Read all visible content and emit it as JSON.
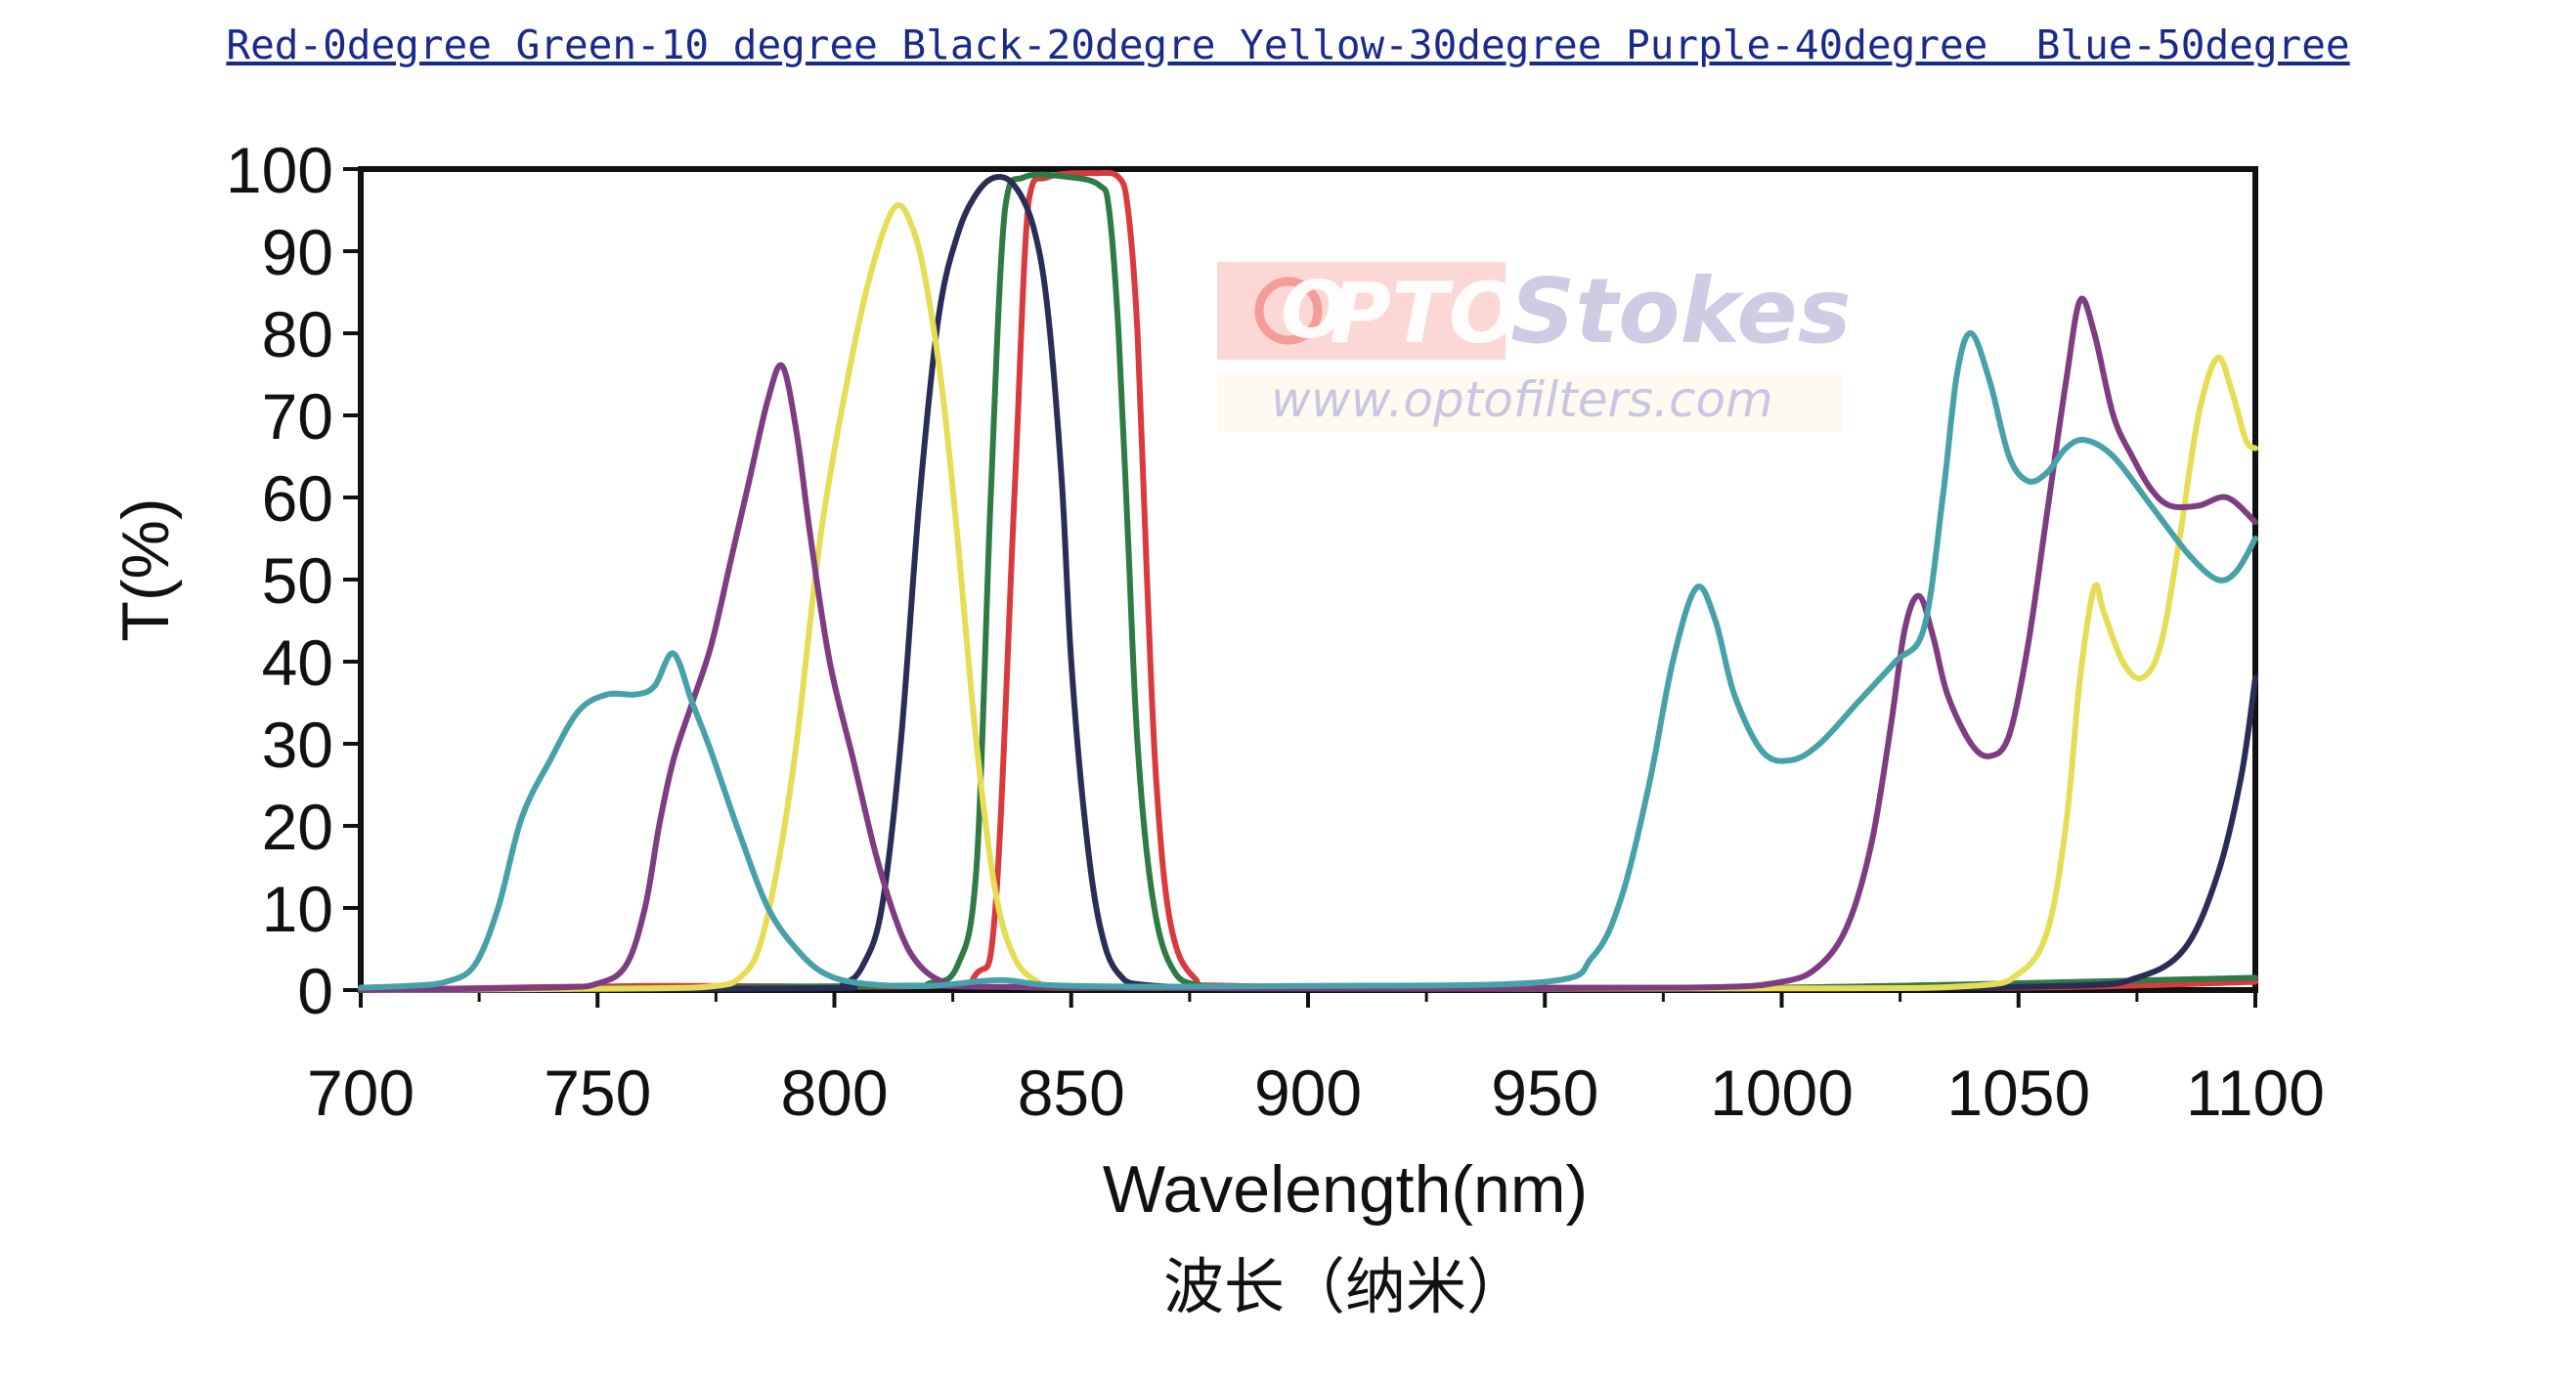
{
  "header": {
    "legend_caption": "Red-0degree Green-10 degree Black-20degre Yellow-30degree Purple-40degree  Blue-50degree"
  },
  "watermark": {
    "logo_o": "O",
    "logo_pto": "PTO",
    "logo_stokes": "Stokes",
    "url": "www.optofilters.com"
  },
  "colors": {
    "red": "#d93a3e",
    "green": "#2f7a45",
    "black": "#2a2d55",
    "yellow": "#e6dd55",
    "purple": "#7e3c82",
    "blue": "#47a1a8",
    "watermark_red": "#f6a3a0",
    "watermark_lilac": "#c6c4e0"
  },
  "chart_data": {
    "type": "line",
    "title": "",
    "xlabel": "Wavelength(nm)",
    "xlabel_secondary": "波长（纳米）",
    "ylabel": "T(%)",
    "xlim": [
      700,
      1100
    ],
    "ylim": [
      0,
      100
    ],
    "xticks": [
      700,
      750,
      800,
      850,
      900,
      950,
      1000,
      1050,
      1100
    ],
    "yticks": [
      0,
      10,
      20,
      30,
      40,
      50,
      60,
      70,
      80,
      90,
      100
    ],
    "grid": false,
    "legend": "none",
    "series": [
      {
        "color_key": "red",
        "points": [
          [
            700,
            0
          ],
          [
            760,
            0.5
          ],
          [
            820,
            0.5
          ],
          [
            830,
            2
          ],
          [
            834,
            10
          ],
          [
            838,
            60
          ],
          [
            841,
            96
          ],
          [
            845,
            99
          ],
          [
            855,
            99.5
          ],
          [
            860,
            99
          ],
          [
            862,
            95
          ],
          [
            864,
            80
          ],
          [
            866,
            50
          ],
          [
            868,
            25
          ],
          [
            871,
            8
          ],
          [
            876,
            1.5
          ],
          [
            885,
            0.5
          ],
          [
            950,
            0.3
          ],
          [
            1050,
            0.3
          ],
          [
            1100,
            1
          ]
        ]
      },
      {
        "color_key": "green",
        "points": [
          [
            700,
            0
          ],
          [
            810,
            0.5
          ],
          [
            820,
            0.8
          ],
          [
            826,
            3
          ],
          [
            830,
            15
          ],
          [
            833,
            60
          ],
          [
            836,
            95
          ],
          [
            840,
            99
          ],
          [
            850,
            99
          ],
          [
            856,
            98
          ],
          [
            858,
            95
          ],
          [
            860,
            80
          ],
          [
            862,
            55
          ],
          [
            864,
            30
          ],
          [
            867,
            12
          ],
          [
            871,
            3
          ],
          [
            878,
            0.5
          ],
          [
            900,
            0.3
          ],
          [
            1000,
            0.3
          ],
          [
            1100,
            1.5
          ]
        ]
      },
      {
        "color_key": "black",
        "points": [
          [
            700,
            0
          ],
          [
            795,
            0.2
          ],
          [
            802,
            0.8
          ],
          [
            806,
            3
          ],
          [
            810,
            10
          ],
          [
            814,
            30
          ],
          [
            818,
            60
          ],
          [
            822,
            82
          ],
          [
            826,
            92
          ],
          [
            830,
            97
          ],
          [
            834,
            99
          ],
          [
            838,
            98
          ],
          [
            842,
            93
          ],
          [
            845,
            83
          ],
          [
            848,
            62
          ],
          [
            850,
            40
          ],
          [
            853,
            20
          ],
          [
            856,
            8
          ],
          [
            860,
            2
          ],
          [
            868,
            0.5
          ],
          [
            900,
            0.2
          ],
          [
            1000,
            0.2
          ],
          [
            1060,
            0.5
          ],
          [
            1075,
            1.5
          ],
          [
            1085,
            5
          ],
          [
            1092,
            14
          ],
          [
            1097,
            26
          ],
          [
            1100,
            38
          ]
        ]
      },
      {
        "color_key": "yellow",
        "points": [
          [
            700,
            0
          ],
          [
            760,
            0.2
          ],
          [
            775,
            0.5
          ],
          [
            780,
            1.5
          ],
          [
            784,
            5
          ],
          [
            788,
            15
          ],
          [
            792,
            30
          ],
          [
            797,
            55
          ],
          [
            803,
            75
          ],
          [
            808,
            88
          ],
          [
            813,
            95.5
          ],
          [
            817,
            92
          ],
          [
            820,
            84
          ],
          [
            823,
            72
          ],
          [
            826,
            55
          ],
          [
            830,
            30
          ],
          [
            834,
            12
          ],
          [
            838,
            4
          ],
          [
            843,
            1
          ],
          [
            850,
            0.3
          ],
          [
            1000,
            0.2
          ],
          [
            1040,
            0.5
          ],
          [
            1050,
            2
          ],
          [
            1056,
            7
          ],
          [
            1060,
            20
          ],
          [
            1063,
            38
          ],
          [
            1066,
            49
          ],
          [
            1068,
            46
          ],
          [
            1072,
            40
          ],
          [
            1076,
            38
          ],
          [
            1080,
            42
          ],
          [
            1084,
            55
          ],
          [
            1088,
            70
          ],
          [
            1092,
            77
          ],
          [
            1095,
            73
          ],
          [
            1098,
            67
          ],
          [
            1100,
            66
          ]
        ]
      },
      {
        "color_key": "purple",
        "points": [
          [
            700,
            0
          ],
          [
            740,
            0.3
          ],
          [
            750,
            0.8
          ],
          [
            756,
            3
          ],
          [
            760,
            10
          ],
          [
            763,
            20
          ],
          [
            766,
            28
          ],
          [
            770,
            35
          ],
          [
            774,
            42
          ],
          [
            778,
            52
          ],
          [
            782,
            62
          ],
          [
            786,
            72
          ],
          [
            789,
            76
          ],
          [
            792,
            68
          ],
          [
            795,
            55
          ],
          [
            799,
            40
          ],
          [
            804,
            28
          ],
          [
            809,
            16
          ],
          [
            814,
            7
          ],
          [
            818,
            3
          ],
          [
            823,
            1
          ],
          [
            830,
            0.4
          ],
          [
            900,
            0.2
          ],
          [
            980,
            0.3
          ],
          [
            1000,
            1
          ],
          [
            1008,
            3
          ],
          [
            1014,
            8
          ],
          [
            1019,
            18
          ],
          [
            1023,
            32
          ],
          [
            1026,
            44
          ],
          [
            1029,
            48
          ],
          [
            1032,
            43
          ],
          [
            1035,
            36
          ],
          [
            1040,
            30
          ],
          [
            1044,
            28.5
          ],
          [
            1048,
            31
          ],
          [
            1052,
            42
          ],
          [
            1056,
            58
          ],
          [
            1060,
            74
          ],
          [
            1063,
            84
          ],
          [
            1066,
            80
          ],
          [
            1070,
            70
          ],
          [
            1074,
            65
          ],
          [
            1078,
            61
          ],
          [
            1082,
            59
          ],
          [
            1088,
            59
          ],
          [
            1094,
            60
          ],
          [
            1100,
            57
          ]
        ]
      },
      {
        "color_key": "blue",
        "points": [
          [
            700,
            0.3
          ],
          [
            710,
            0.5
          ],
          [
            718,
            1
          ],
          [
            724,
            3
          ],
          [
            729,
            10
          ],
          [
            734,
            21
          ],
          [
            740,
            28
          ],
          [
            746,
            34
          ],
          [
            752,
            36
          ],
          [
            758,
            36
          ],
          [
            762,
            37
          ],
          [
            766,
            41
          ],
          [
            770,
            35
          ],
          [
            774,
            29
          ],
          [
            780,
            19
          ],
          [
            786,
            10
          ],
          [
            792,
            5
          ],
          [
            798,
            2
          ],
          [
            806,
            0.8
          ],
          [
            820,
            0.5
          ],
          [
            835,
            1.2
          ],
          [
            850,
            0.5
          ],
          [
            900,
            0.5
          ],
          [
            950,
            1
          ],
          [
            960,
            4
          ],
          [
            966,
            11
          ],
          [
            972,
            25
          ],
          [
            977,
            40
          ],
          [
            982,
            49
          ],
          [
            986,
            45
          ],
          [
            990,
            36
          ],
          [
            996,
            29
          ],
          [
            1002,
            28
          ],
          [
            1008,
            30
          ],
          [
            1016,
            35
          ],
          [
            1024,
            40
          ],
          [
            1030,
            44
          ],
          [
            1034,
            60
          ],
          [
            1037,
            75
          ],
          [
            1040,
            80
          ],
          [
            1044,
            74
          ],
          [
            1048,
            65
          ],
          [
            1052,
            62
          ],
          [
            1056,
            63
          ],
          [
            1060,
            66
          ],
          [
            1064,
            67
          ],
          [
            1070,
            65
          ],
          [
            1078,
            59
          ],
          [
            1086,
            53
          ],
          [
            1092,
            50
          ],
          [
            1096,
            51
          ],
          [
            1100,
            55
          ]
        ]
      }
    ]
  }
}
